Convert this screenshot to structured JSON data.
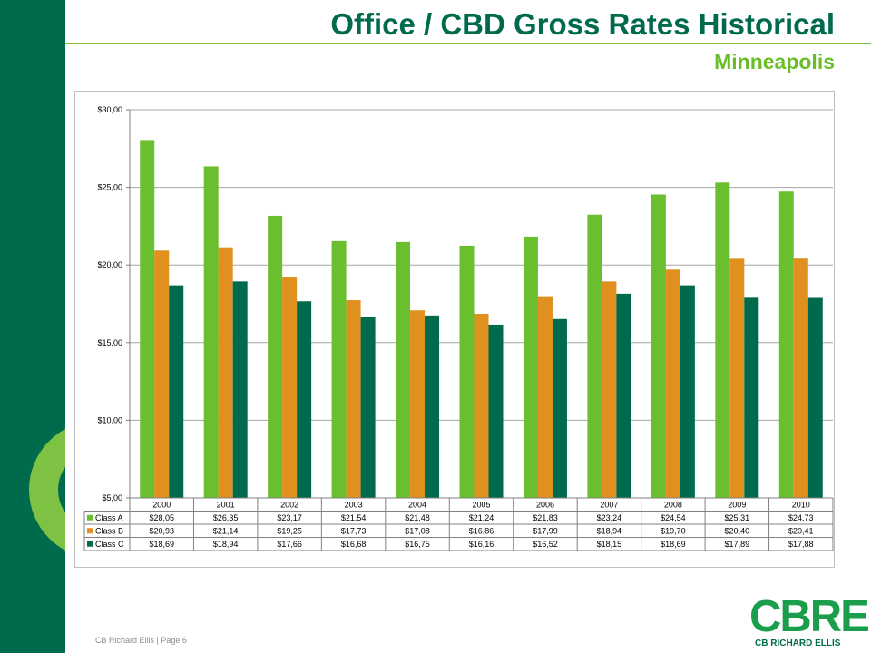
{
  "title": "Office / CBD Gross Rates Historical",
  "subtitle": "Minneapolis",
  "footer": {
    "company": "CB Richard Ellis",
    "separator": "|",
    "page": "Page 6"
  },
  "logo": {
    "wordmark": "CBRE",
    "company": "CB RICHARD ELLIS"
  },
  "colors": {
    "brand_dark": "#006a4d",
    "brand_light": "#69be28",
    "class_a": "#6abf2e",
    "class_b": "#e0901e",
    "class_c": "#006a4d"
  },
  "chart_data": {
    "type": "bar",
    "categories": [
      "2000",
      "2001",
      "2002",
      "2003",
      "2004",
      "2005",
      "2006",
      "2007",
      "2008",
      "2009",
      "2010"
    ],
    "ylim": [
      5,
      30
    ],
    "y_ticks": [
      "$5,00",
      "$10,00",
      "$15,00",
      "$20,00",
      "$25,00",
      "$30,00"
    ],
    "grid": true,
    "legend": "data table below chart",
    "series": [
      {
        "name": "Class A",
        "color": "#6abf2e",
        "values": [
          28.05,
          26.35,
          23.17,
          21.54,
          21.48,
          21.24,
          21.83,
          23.24,
          24.54,
          25.31,
          24.73
        ],
        "labels": [
          "$28,05",
          "$26,35",
          "$23,17",
          "$21,54",
          "$21,48",
          "$21,24",
          "$21,83",
          "$23,24",
          "$24,54",
          "$25,31",
          "$24,73"
        ]
      },
      {
        "name": "Class B",
        "color": "#e0901e",
        "values": [
          20.93,
          21.14,
          19.25,
          17.73,
          17.08,
          16.86,
          17.99,
          18.94,
          19.7,
          20.4,
          20.41
        ],
        "labels": [
          "$20,93",
          "$21,14",
          "$19,25",
          "$17,73",
          "$17,08",
          "$16,86",
          "$17,99",
          "$18,94",
          "$19,70",
          "$20,40",
          "$20,41"
        ]
      },
      {
        "name": "Class C",
        "color": "#006a4d",
        "values": [
          18.69,
          18.94,
          17.66,
          16.68,
          16.75,
          16.16,
          16.52,
          18.15,
          18.69,
          17.89,
          17.88
        ],
        "labels": [
          "$18,69",
          "$18,94",
          "$17,66",
          "$16,68",
          "$16,75",
          "$16,16",
          "$16,52",
          "$18,15",
          "$18,69",
          "$17,89",
          "$17,88"
        ]
      }
    ]
  }
}
